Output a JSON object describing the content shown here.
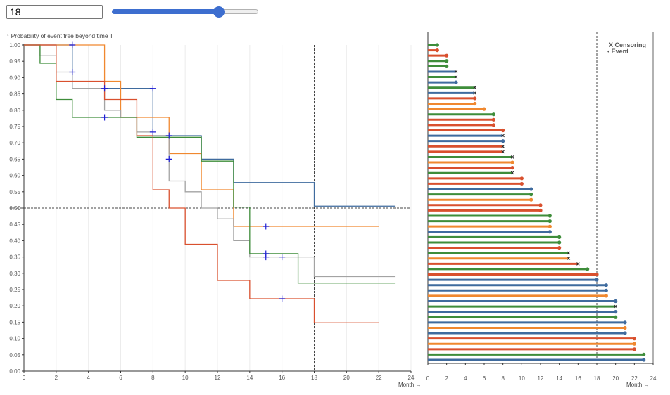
{
  "controls": {
    "month_value": "18",
    "slider": {
      "min": 0,
      "max": 24,
      "value": 18
    }
  },
  "colors": {
    "green": "#3e8d3a",
    "orange": "#f0882f",
    "red": "#d9502e",
    "gray": "#a3a3a3",
    "blue": "#3f6b9e",
    "censor": "#1f1fd6",
    "axis": "#333333"
  },
  "chart_data": [
    {
      "type": "line",
      "subtype": "kaplan-meier",
      "ylabel": "↑ Probability of event free beyond time T",
      "xlabel": "Month →",
      "xlim": [
        0,
        24
      ],
      "ylim": [
        0,
        1
      ],
      "xticks": [
        0,
        2,
        4,
        6,
        8,
        10,
        12,
        14,
        16,
        18,
        20,
        22,
        24
      ],
      "yticks": [
        "0.00",
        "0.05",
        "0.10",
        "0.15",
        "0.20",
        "0.25",
        "0.30",
        "0.35",
        "0.40",
        "0.45",
        "0.50",
        "0.55",
        "0.60",
        "0.65",
        "0.70",
        "0.75",
        "0.80",
        "0.85",
        "0.90",
        "0.95",
        "1.00"
      ],
      "reference_lines": {
        "x": 18,
        "y": 0.5
      },
      "series": [
        {
          "name": "blue",
          "color": "#3f6b9e",
          "steps": [
            [
              0,
              1
            ],
            [
              3,
              0.867
            ],
            [
              8,
              0.722
            ],
            [
              11,
              0.65
            ],
            [
              13,
              0.578
            ],
            [
              18,
              0.506
            ],
            [
              23,
              0.506
            ]
          ],
          "censored": [
            [
              3,
              1.0
            ],
            [
              3,
              0.917
            ],
            [
              5,
              0.867
            ],
            [
              8,
              0.867
            ],
            [
              8,
              0.733
            ],
            [
              9,
              0.722
            ],
            [
              9,
              0.65
            ]
          ]
        },
        {
          "name": "orange",
          "color": "#f0882f",
          "steps": [
            [
              0,
              1
            ],
            [
              5,
              0.889
            ],
            [
              6,
              0.778
            ],
            [
              9,
              0.667
            ],
            [
              11,
              0.556
            ],
            [
              13,
              0.444
            ],
            [
              22,
              0.444
            ]
          ],
          "censored": [
            [
              15,
              0.444
            ]
          ]
        },
        {
          "name": "gray",
          "color": "#a3a3a3",
          "steps": [
            [
              0,
              1
            ],
            [
              1,
              0.967
            ],
            [
              2,
              0.917
            ],
            [
              3,
              0.867
            ],
            [
              5,
              0.8
            ],
            [
              6,
              0.778
            ],
            [
              7,
              0.733
            ],
            [
              8,
              0.722
            ],
            [
              9,
              0.583
            ],
            [
              10,
              0.55
            ],
            [
              11,
              0.5
            ],
            [
              12,
              0.467
            ],
            [
              13,
              0.4
            ],
            [
              14,
              0.35
            ],
            [
              18,
              0.29
            ],
            [
              23,
              0.29
            ]
          ],
          "censored": []
        },
        {
          "name": "green",
          "color": "#3e8d3a",
          "steps": [
            [
              0,
              1
            ],
            [
              1,
              0.944
            ],
            [
              2,
              0.833
            ],
            [
              3,
              0.778
            ],
            [
              7,
              0.717
            ],
            [
              11,
              0.644
            ],
            [
              13,
              0.503
            ],
            [
              14,
              0.36
            ],
            [
              17,
              0.27
            ],
            [
              23,
              0.27
            ]
          ],
          "censored": [
            [
              5,
              0.778
            ],
            [
              15,
              0.36
            ],
            [
              15,
              0.35
            ],
            [
              16,
              0.35
            ]
          ]
        },
        {
          "name": "red",
          "color": "#d9502e",
          "steps": [
            [
              0,
              1
            ],
            [
              2,
              0.889
            ],
            [
              5,
              0.833
            ],
            [
              7,
              0.722
            ],
            [
              8,
              0.556
            ],
            [
              9,
              0.5
            ],
            [
              10,
              0.389
            ],
            [
              12,
              0.278
            ],
            [
              14,
              0.222
            ],
            [
              18,
              0.148
            ],
            [
              22,
              0.148
            ]
          ],
          "censored": [
            [
              16,
              0.222
            ]
          ]
        }
      ]
    },
    {
      "type": "swimmer",
      "xlabel": "Month →",
      "xlim": [
        0,
        24
      ],
      "xticks": [
        0,
        2,
        4,
        6,
        8,
        10,
        12,
        14,
        16,
        18,
        20,
        22,
        24
      ],
      "reference_line_x": 18,
      "legend": {
        "censor_label": "X Censoring",
        "event_label": "• Event",
        "position": "top-right"
      },
      "subjects": [
        {
          "t": 1,
          "c": "green",
          "e": "event"
        },
        {
          "t": 1,
          "c": "red",
          "e": "event"
        },
        {
          "t": 2,
          "c": "red",
          "e": "event"
        },
        {
          "t": 2,
          "c": "green",
          "e": "event"
        },
        {
          "t": 2,
          "c": "green",
          "e": "event"
        },
        {
          "t": 3,
          "c": "blue",
          "e": "censor"
        },
        {
          "t": 3,
          "c": "green",
          "e": "censor"
        },
        {
          "t": 3,
          "c": "blue",
          "e": "event"
        },
        {
          "t": 5,
          "c": "green",
          "e": "censor"
        },
        {
          "t": 5,
          "c": "blue",
          "e": "censor"
        },
        {
          "t": 5,
          "c": "red",
          "e": "event"
        },
        {
          "t": 5,
          "c": "orange",
          "e": "event"
        },
        {
          "t": 6,
          "c": "orange",
          "e": "event"
        },
        {
          "t": 7,
          "c": "green",
          "e": "event"
        },
        {
          "t": 7,
          "c": "red",
          "e": "event"
        },
        {
          "t": 7,
          "c": "red",
          "e": "event"
        },
        {
          "t": 8,
          "c": "red",
          "e": "event"
        },
        {
          "t": 8,
          "c": "blue",
          "e": "censor"
        },
        {
          "t": 8,
          "c": "blue",
          "e": "event"
        },
        {
          "t": 8,
          "c": "red",
          "e": "censor"
        },
        {
          "t": 8,
          "c": "red",
          "e": "censor"
        },
        {
          "t": 9,
          "c": "green",
          "e": "censor"
        },
        {
          "t": 9,
          "c": "orange",
          "e": "event"
        },
        {
          "t": 9,
          "c": "red",
          "e": "event"
        },
        {
          "t": 9,
          "c": "green",
          "e": "censor"
        },
        {
          "t": 10,
          "c": "red",
          "e": "event"
        },
        {
          "t": 10,
          "c": "red",
          "e": "event"
        },
        {
          "t": 11,
          "c": "blue",
          "e": "event"
        },
        {
          "t": 11,
          "c": "green",
          "e": "event"
        },
        {
          "t": 11,
          "c": "orange",
          "e": "event"
        },
        {
          "t": 12,
          "c": "red",
          "e": "event"
        },
        {
          "t": 12,
          "c": "red",
          "e": "event"
        },
        {
          "t": 13,
          "c": "green",
          "e": "event"
        },
        {
          "t": 13,
          "c": "green",
          "e": "event"
        },
        {
          "t": 13,
          "c": "orange",
          "e": "event"
        },
        {
          "t": 13,
          "c": "blue",
          "e": "event"
        },
        {
          "t": 14,
          "c": "green",
          "e": "event"
        },
        {
          "t": 14,
          "c": "green",
          "e": "event"
        },
        {
          "t": 14,
          "c": "red",
          "e": "event"
        },
        {
          "t": 15,
          "c": "green",
          "e": "censor"
        },
        {
          "t": 15,
          "c": "orange",
          "e": "censor"
        },
        {
          "t": 16,
          "c": "red",
          "e": "censor"
        },
        {
          "t": 17,
          "c": "green",
          "e": "event"
        },
        {
          "t": 18,
          "c": "red",
          "e": "event"
        },
        {
          "t": 18,
          "c": "blue",
          "e": "event"
        },
        {
          "t": 19,
          "c": "blue",
          "e": "event"
        },
        {
          "t": 19,
          "c": "blue",
          "e": "event"
        },
        {
          "t": 19,
          "c": "orange",
          "e": "event"
        },
        {
          "t": 20,
          "c": "blue",
          "e": "event"
        },
        {
          "t": 20,
          "c": "green",
          "e": "censor"
        },
        {
          "t": 20,
          "c": "blue",
          "e": "event"
        },
        {
          "t": 20,
          "c": "green",
          "e": "event"
        },
        {
          "t": 21,
          "c": "blue",
          "e": "event"
        },
        {
          "t": 21,
          "c": "orange",
          "e": "event"
        },
        {
          "t": 21,
          "c": "blue",
          "e": "event"
        },
        {
          "t": 22,
          "c": "red",
          "e": "event"
        },
        {
          "t": 22,
          "c": "orange",
          "e": "event"
        },
        {
          "t": 22,
          "c": "red",
          "e": "event"
        },
        {
          "t": 23,
          "c": "green",
          "e": "event"
        },
        {
          "t": 23,
          "c": "blue",
          "e": "event"
        }
      ]
    }
  ]
}
